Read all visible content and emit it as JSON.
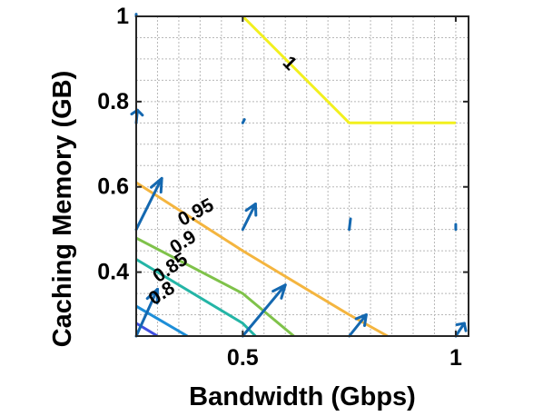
{
  "chart_data": {
    "type": "contour",
    "xlabel": "Bandwidth (Gbps)",
    "ylabel": "Caching Memory (GB)",
    "xlim": [
      0.25,
      1.03
    ],
    "ylim": [
      0.25,
      1.0
    ],
    "x_ticks": [
      0.5,
      1
    ],
    "x_tick_labels": [
      "0.5",
      "1"
    ],
    "y_ticks": [
      0.4,
      0.6,
      0.8,
      1
    ],
    "y_tick_labels": [
      "0.4",
      "0.6",
      "0.8",
      "1"
    ],
    "grid": true,
    "grid_style": "dotted",
    "contours": [
      {
        "level_label": "1",
        "color": "#f2f01e",
        "points": [
          [
            0.5,
            1.0
          ],
          [
            0.75,
            0.75
          ],
          [
            1.0,
            0.75
          ]
        ]
      },
      {
        "level_label": "0.95",
        "color": "#f4b53f",
        "points": [
          [
            0.25,
            0.61
          ],
          [
            0.5,
            0.45
          ],
          [
            0.75,
            0.3
          ],
          [
            0.84,
            0.25
          ]
        ]
      },
      {
        "level_label": "0.9",
        "color": "#7fc24a",
        "points": [
          [
            0.25,
            0.48
          ],
          [
            0.5,
            0.35
          ],
          [
            0.62,
            0.25
          ]
        ]
      },
      {
        "level_label": "0.85",
        "color": "#24b5a6",
        "points": [
          [
            0.25,
            0.43
          ],
          [
            0.5,
            0.28
          ],
          [
            0.53,
            0.25
          ]
        ]
      },
      {
        "level_label": "0.8",
        "color": "#1d8ed8",
        "points": [
          [
            0.25,
            0.32
          ],
          [
            0.37,
            0.25
          ]
        ]
      },
      {
        "level_label": "",
        "color": "#4050e0",
        "points": [
          [
            0.25,
            0.28
          ],
          [
            0.3,
            0.25
          ]
        ]
      }
    ],
    "contour_label_positions": [
      {
        "text": "1",
        "at": [
          0.61,
          0.89
        ],
        "rotate": 45
      },
      {
        "text": "0.95",
        "at": [
          0.39,
          0.54
        ],
        "rotate": -28
      },
      {
        "text": "0.9",
        "at": [
          0.36,
          0.47
        ],
        "rotate": -33
      },
      {
        "text": "0.85",
        "at": [
          0.33,
          0.41
        ],
        "rotate": -34
      },
      {
        "text": "0.8",
        "at": [
          0.31,
          0.35
        ],
        "rotate": -34
      }
    ],
    "quiver": {
      "color": "#1468b0",
      "vectors": [
        {
          "x": 0.25,
          "y": 0.25,
          "u": 0.05,
          "v": 0.11
        },
        {
          "x": 0.25,
          "y": 0.5,
          "u": 0.06,
          "v": 0.12
        },
        {
          "x": 0.25,
          "y": 0.75,
          "u": 0.003,
          "v": 0.03
        },
        {
          "x": 0.25,
          "y": 1.0,
          "u": 0.0,
          "v": 0.005
        },
        {
          "x": 0.5,
          "y": 0.25,
          "u": 0.1,
          "v": 0.12
        },
        {
          "x": 0.5,
          "y": 0.5,
          "u": 0.03,
          "v": 0.06
        },
        {
          "x": 0.5,
          "y": 0.75,
          "u": 0.004,
          "v": 0.008
        },
        {
          "x": 0.75,
          "y": 0.25,
          "u": 0.04,
          "v": 0.05
        },
        {
          "x": 0.75,
          "y": 0.5,
          "u": 0.003,
          "v": 0.025
        },
        {
          "x": 1.0,
          "y": 0.25,
          "u": 0.02,
          "v": 0.03
        },
        {
          "x": 1.0,
          "y": 0.5,
          "u": 0.0,
          "v": 0.012
        }
      ]
    }
  }
}
